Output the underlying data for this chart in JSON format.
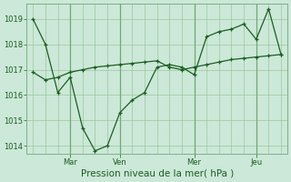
{
  "xlabel": "Pression niveau de la mer( hPa )",
  "ylim": [
    1013.7,
    1019.6
  ],
  "yticks": [
    1014,
    1015,
    1016,
    1017,
    1018,
    1019
  ],
  "bg_color": "#cce8d8",
  "line_color": "#1a5e20",
  "grid_color_h": "#90c090",
  "grid_color_v": "#90c090",
  "day_line_color": "#70a878",
  "line1_x": [
    0,
    1,
    2,
    3,
    4,
    5,
    6,
    7,
    8,
    9,
    10,
    11,
    12,
    13,
    14,
    15,
    16,
    17,
    18,
    19,
    20
  ],
  "line1_y": [
    1019.0,
    1018.0,
    1016.1,
    1016.7,
    1014.7,
    1013.8,
    1014.0,
    1015.3,
    1015.8,
    1016.1,
    1017.1,
    1017.2,
    1017.1,
    1016.8,
    1018.3,
    1018.5,
    1018.6,
    1018.8,
    1018.2,
    1019.4,
    1017.6
  ],
  "line2_x": [
    0,
    1,
    2,
    3,
    4,
    5,
    6,
    7,
    8,
    9,
    10,
    11,
    12,
    13,
    14,
    15,
    16,
    17,
    18,
    19,
    20
  ],
  "line2_y": [
    1016.9,
    1016.6,
    1016.7,
    1016.9,
    1017.0,
    1017.1,
    1017.15,
    1017.2,
    1017.25,
    1017.3,
    1017.35,
    1017.1,
    1017.0,
    1017.1,
    1017.2,
    1017.3,
    1017.4,
    1017.45,
    1017.5,
    1017.55,
    1017.6
  ],
  "xtick_positions": [
    3,
    7,
    13,
    18
  ],
  "xtick_labels": [
    "Mar",
    "Ven",
    "Mer",
    "Jeu"
  ],
  "vline_positions": [
    3,
    7,
    13,
    18
  ],
  "xlim": [
    -0.5,
    20.5
  ],
  "label_fontsize": 6.5,
  "tick_fontsize": 6,
  "xlabel_fontsize": 7.5
}
